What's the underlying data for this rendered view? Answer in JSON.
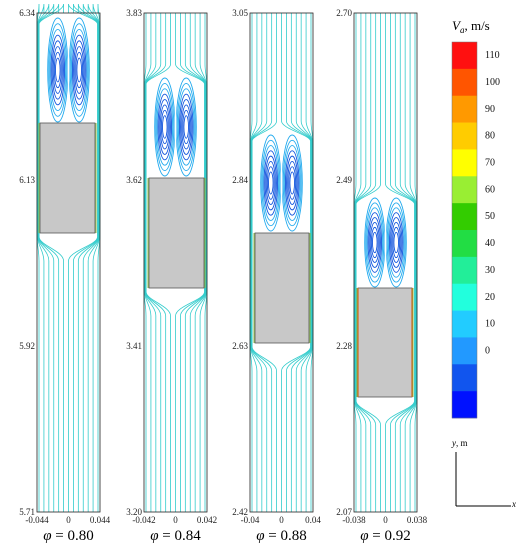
{
  "panels": [
    {
      "id": "p1",
      "phi_value": "0.80",
      "y_ticks": [
        "6.34",
        "6.13",
        "5.92",
        "5.71"
      ],
      "x_ticks": [
        "-0.044",
        "0",
        "0.044"
      ]
    },
    {
      "id": "p2",
      "phi_value": "0.84",
      "y_ticks": [
        "3.83",
        "3.62",
        "3.41",
        "3.20"
      ],
      "x_ticks": [
        "-0.042",
        "0",
        "0.042"
      ]
    },
    {
      "id": "p3",
      "phi_value": "0.88",
      "y_ticks": [
        "3.05",
        "2.84",
        "2.63",
        "2.42"
      ],
      "x_ticks": [
        "-0.04",
        "0",
        "0.04"
      ]
    },
    {
      "id": "p4",
      "phi_value": "0.92",
      "y_ticks": [
        "2.70",
        "2.49",
        "2.28",
        "2.07"
      ],
      "x_ticks": [
        "-0.038",
        "0",
        "0.038"
      ]
    }
  ],
  "caption_prefix": "φ = ",
  "legend": {
    "title_var": "V",
    "title_sub": "a",
    "title_unit": ", m/s",
    "labels": [
      "110",
      "100",
      "90",
      "80",
      "70",
      "60",
      "50",
      "40",
      "30",
      "20",
      "10",
      "0"
    ],
    "colors": [
      "#ff1010",
      "#ff5500",
      "#ff9900",
      "#ffcc00",
      "#ffff00",
      "#99ee33",
      "#33cc00",
      "#22dd44",
      "#22ee99",
      "#22ffdd",
      "#22ccff",
      "#2299ff",
      "#1155ee",
      "#0011ff"
    ]
  },
  "axes_indicator": {
    "y_var": "y",
    "y_unit": ", m",
    "x_var": "x"
  },
  "colors": {
    "streamline": "#33cccc",
    "vortex_outer": "#22aaee",
    "vortex_inner": "#1155dd",
    "body_fill": "#c8c8c8",
    "body_edge": "#555555"
  }
}
